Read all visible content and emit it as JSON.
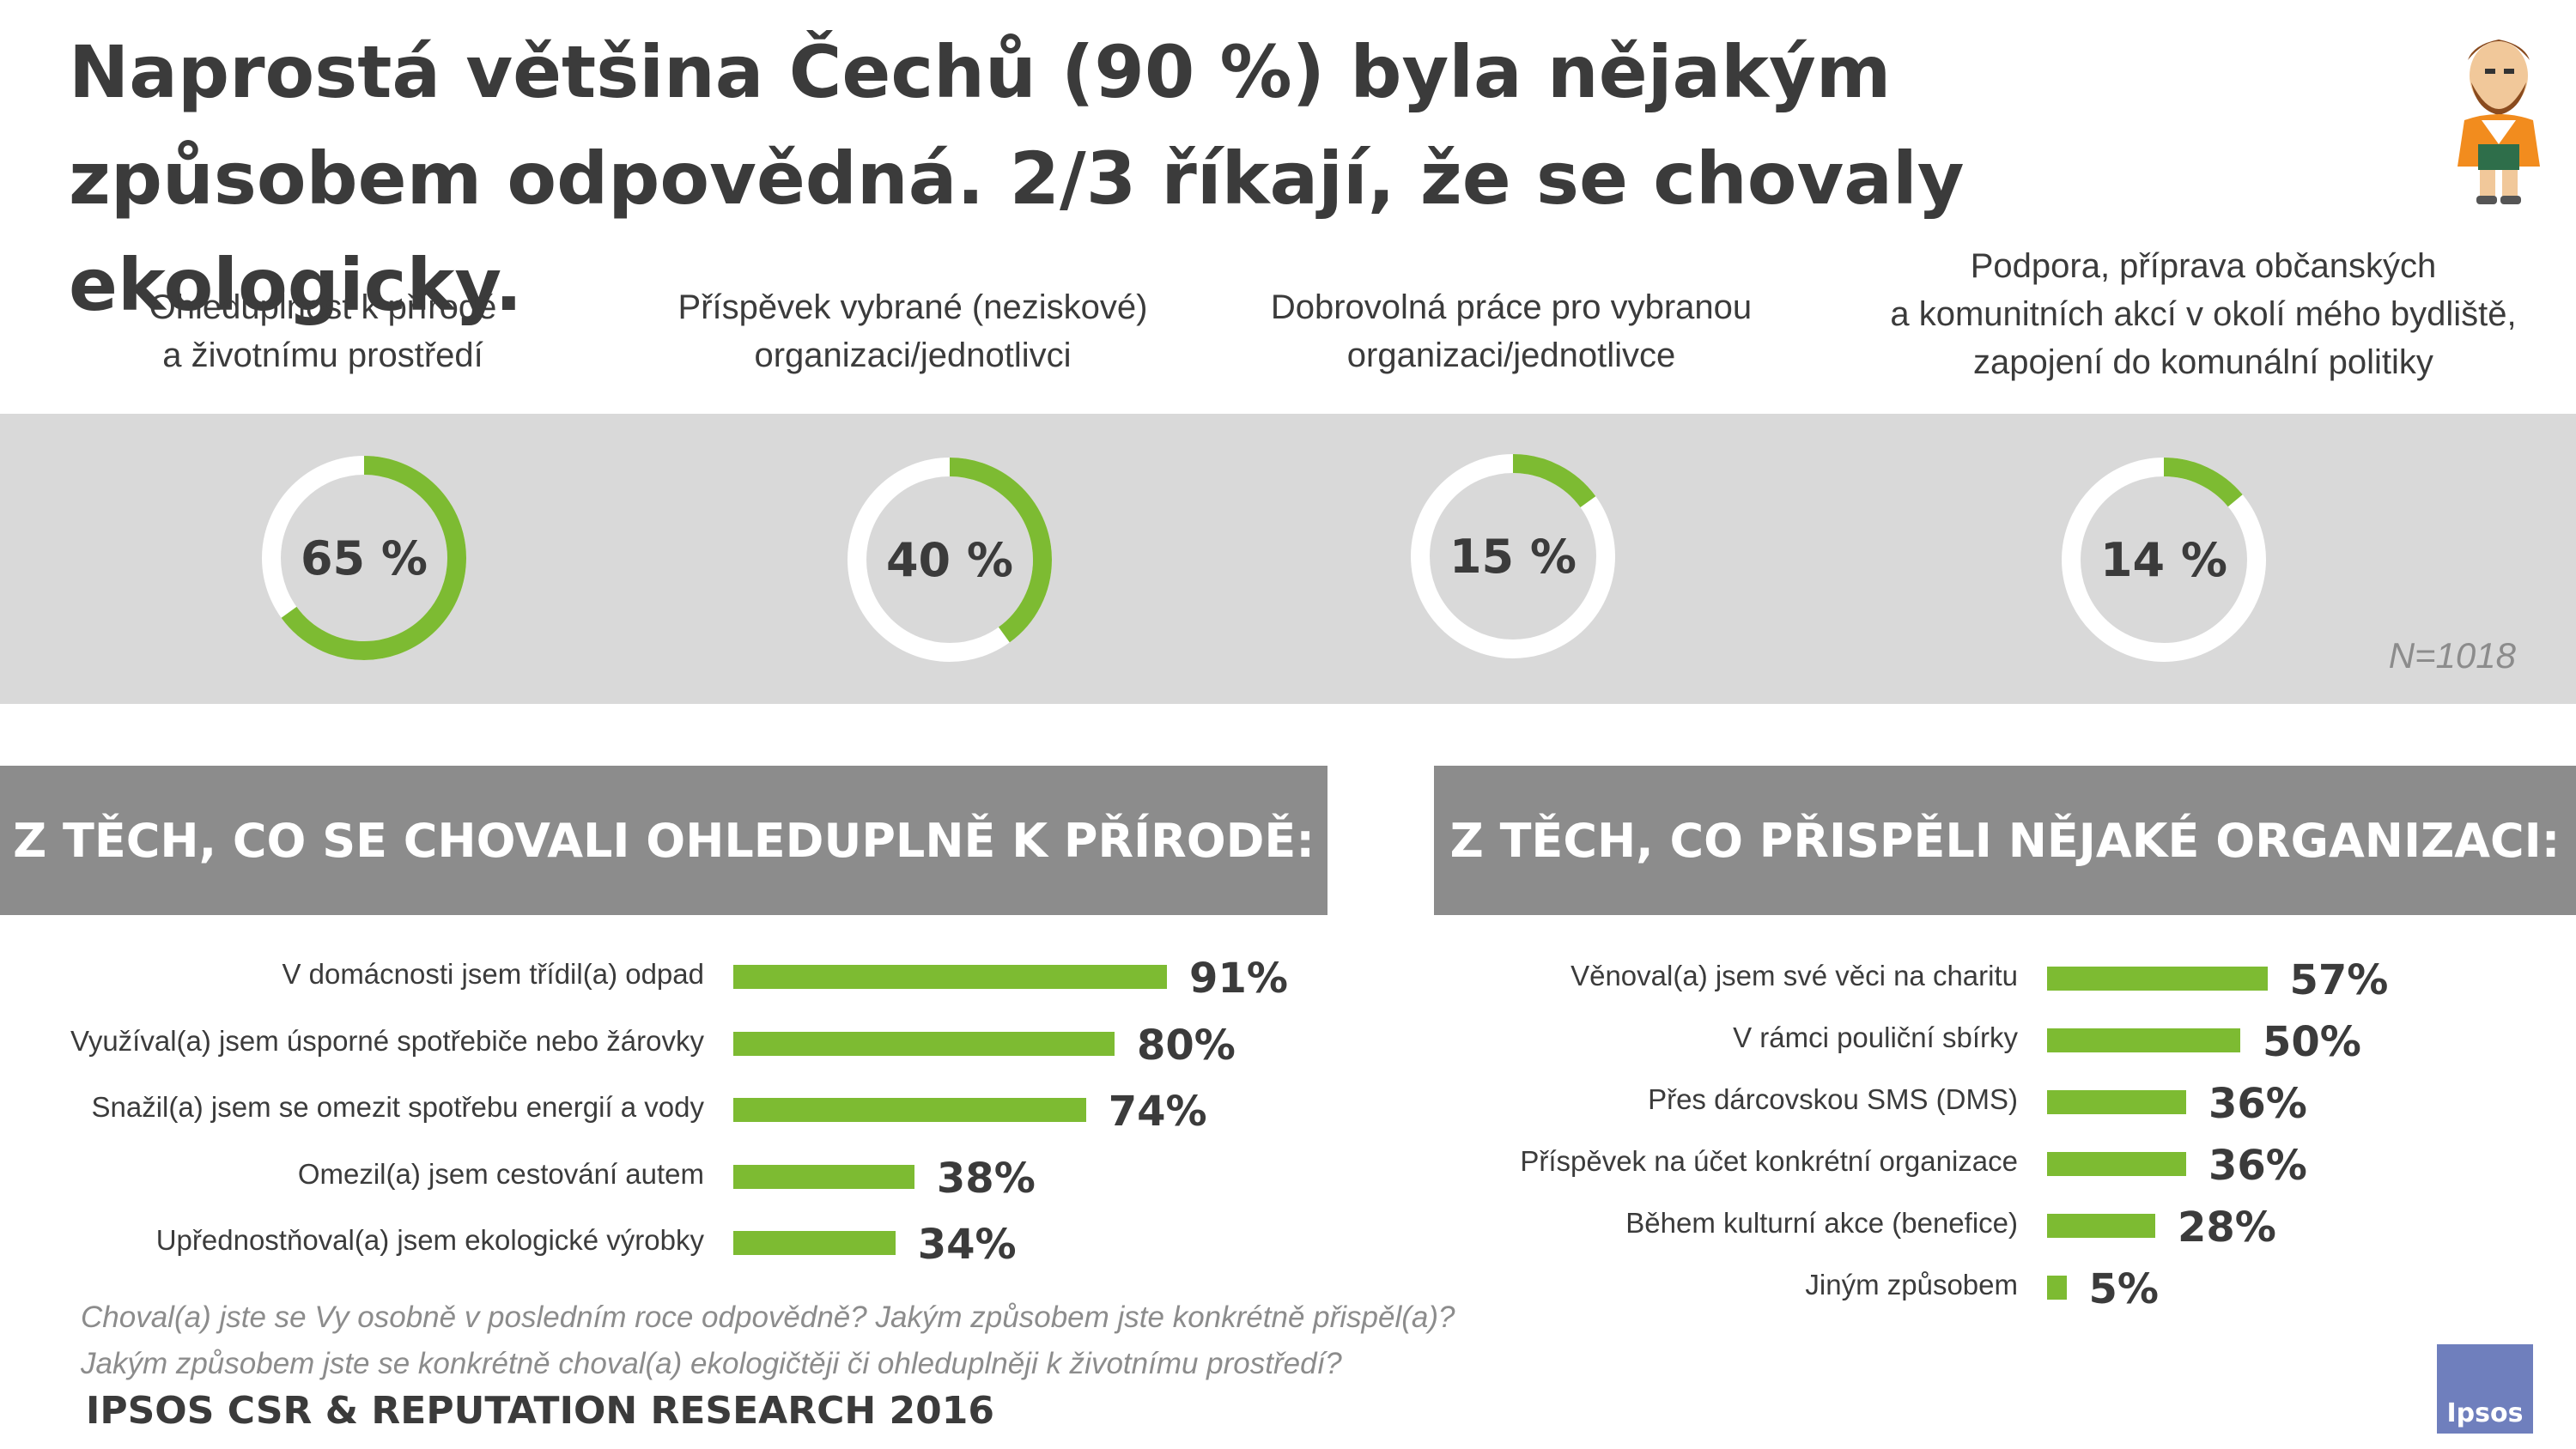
{
  "title": "Naprostá většina  Čechů (90 %) byla nějakým způsobem odpovědná. 2/3 říkají, že se chovaly ekologicky.",
  "colors": {
    "accent": "#7dbb32",
    "track": "#ffffff",
    "band": "#d9d9d9",
    "header": "#8c8c8c",
    "logo": "#6f7fbd"
  },
  "chart_data": [
    {
      "type": "pie",
      "variant": "donut",
      "categories": [
        "Ohleduplnost k přírodě\na životnímu prostředí",
        "Příspěvek vybrané (neziskové)\norganizaci/jednotlivci",
        "Dobrovolná práce pro vybranou\norganizaci/jednotlivce",
        "Podpora, příprava občanských\na komunitních akcí v okolí mého bydliště,\nzapojení do komunální politiky"
      ],
      "values": [
        65,
        40,
        15,
        14
      ],
      "value_labels": [
        "65 %",
        "40 %",
        "15 %",
        "14 %"
      ],
      "note": "N=1018"
    },
    {
      "type": "bar",
      "orientation": "horizontal",
      "title": "Z TĚCH, CO SE CHOVALI OHLEDUPLNĚ K PŘÍRODĚ:",
      "categories": [
        "V domácnosti jsem třídil(a) odpad",
        "Využíval(a) jsem úsporné spotřebiče nebo žárovky",
        "Snažil(a) jsem se omezit spotřebu energií a vody",
        "Omezil(a) jsem cestování autem",
        "Upřednostňoval(a) jsem ekologické výrobky"
      ],
      "values": [
        91,
        80,
        74,
        38,
        34
      ],
      "value_labels": [
        "91%",
        "80%",
        "74%",
        "38%",
        "34%"
      ],
      "xlim": [
        0,
        100
      ]
    },
    {
      "type": "bar",
      "orientation": "horizontal",
      "title": "Z TĚCH, CO PŘISPĚLI NĚJAKÉ ORGANIZACI:",
      "categories": [
        "Věnoval(a) jsem své věci na charitu",
        "V rámci pouliční sbírky",
        "Přes dárcovskou SMS (DMS)",
        "Příspěvek na účet konkrétní organizace",
        "Během kulturní akce (benefice)",
        "Jiným způsobem"
      ],
      "values": [
        57,
        50,
        36,
        36,
        28,
        5
      ],
      "value_labels": [
        "57%",
        "50%",
        "36%",
        "36%",
        "28%",
        "5%"
      ],
      "xlim": [
        0,
        100
      ]
    }
  ],
  "question_lines": [
    "Choval(a) jste se Vy osobně v posledním roce odpovědně? Jakým způsobem jste konkrétně přispěl(a)?",
    "Jakým způsobem jste se konkrétně choval(a) ekologičtěji či ohleduplněji k životnímu prostředí?"
  ],
  "footer": "IPSOS CSR & REPUTATION RESEARCH 2016",
  "logo_text": "Ipsos",
  "mascot_icon": "bearded-man-mascot"
}
